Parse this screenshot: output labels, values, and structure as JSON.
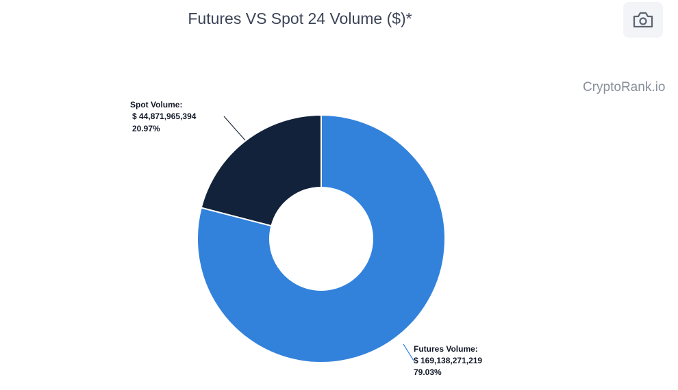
{
  "title": "Futures VS Spot 24 Volume ($)*",
  "watermark": "CryptoRank.io",
  "toolbar": {
    "icon": "camera-icon"
  },
  "colors": {
    "futures": "#3282dc",
    "spot": "#12223a",
    "connector_spot": "#1f2937",
    "connector_futures": "#3282dc"
  },
  "chart_data": {
    "type": "pie",
    "variant": "donut",
    "title": "Futures VS Spot 24 Volume ($)*",
    "slices": [
      {
        "name": "Spot Volume:",
        "value": 44871965394,
        "value_label": "$ 44,871,965,394",
        "percent_label": "20.97%",
        "color": "#12223a"
      },
      {
        "name": "Futures Volume:",
        "value": 169138271219,
        "value_label": "$ 169,138,271,219",
        "percent_label": "79.03%",
        "color": "#3282dc"
      }
    ]
  }
}
